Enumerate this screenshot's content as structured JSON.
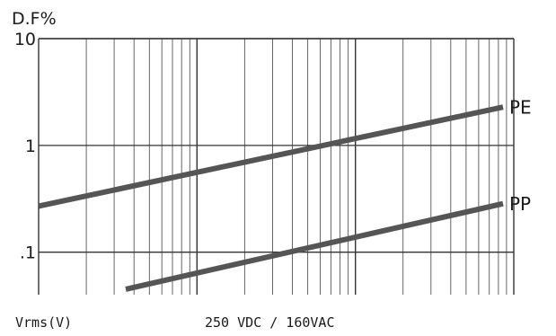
{
  "chart_data": {
    "type": "line",
    "ylabel": "D.F%",
    "xlabel": "Vrms(V)",
    "subtitle": "250 VDC / 160VAC",
    "y_scale": "log",
    "ylim": [
      0.04,
      10
    ],
    "y_ticks": [
      {
        "value": 10,
        "label": "10"
      },
      {
        "value": 1,
        "label": "1"
      },
      {
        "value": 0.1,
        "label": ".1"
      }
    ],
    "x_scale": "log",
    "x_decades": 3,
    "grid": true,
    "series": [
      {
        "name": "PE",
        "x": [
          0.0,
          3.0
        ],
        "y": [
          0.27,
          2.4
        ],
        "color": "#555555"
      },
      {
        "name": "PP",
        "x": [
          0.55,
          3.0
        ],
        "y": [
          0.045,
          0.3
        ],
        "color": "#555555"
      }
    ]
  }
}
